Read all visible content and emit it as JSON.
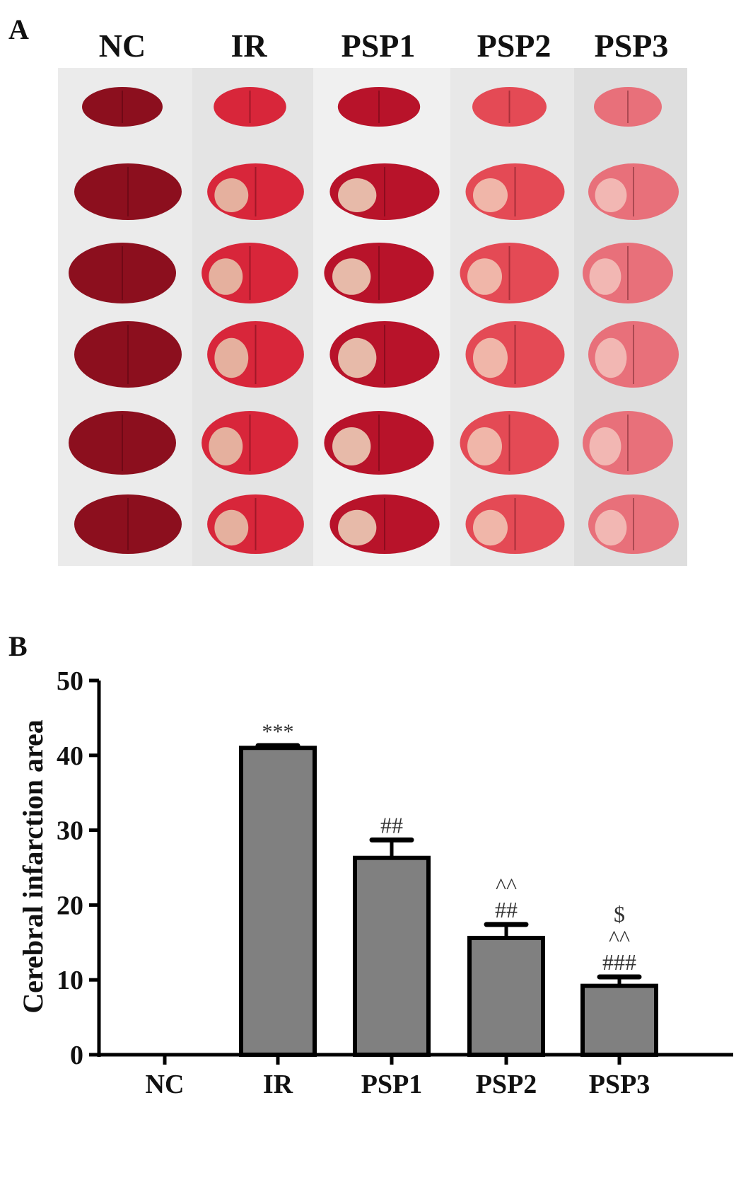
{
  "panel_a": {
    "letter": "A",
    "columns": [
      "NC",
      "IR",
      "PSP1",
      "PSP2",
      "PSP3"
    ]
  },
  "panel_b": {
    "letter": "B"
  },
  "chart_data": {
    "type": "bar",
    "title": "",
    "xlabel": "",
    "ylabel": "Cerebral infarction area",
    "categories": [
      "NC",
      "IR",
      "PSP1",
      "PSP2",
      "PSP3"
    ],
    "values": [
      0,
      41.0,
      26.3,
      15.6,
      9.2
    ],
    "errors": [
      0,
      0.3,
      2.4,
      1.8,
      1.2
    ],
    "annotations": [
      "",
      "***",
      "##",
      "^^\n##",
      "$\n^^\n###"
    ],
    "ylim": [
      0,
      50
    ],
    "yticks": [
      0,
      10,
      20,
      30,
      40,
      50
    ],
    "grid": false,
    "bar_color": "#808080"
  }
}
